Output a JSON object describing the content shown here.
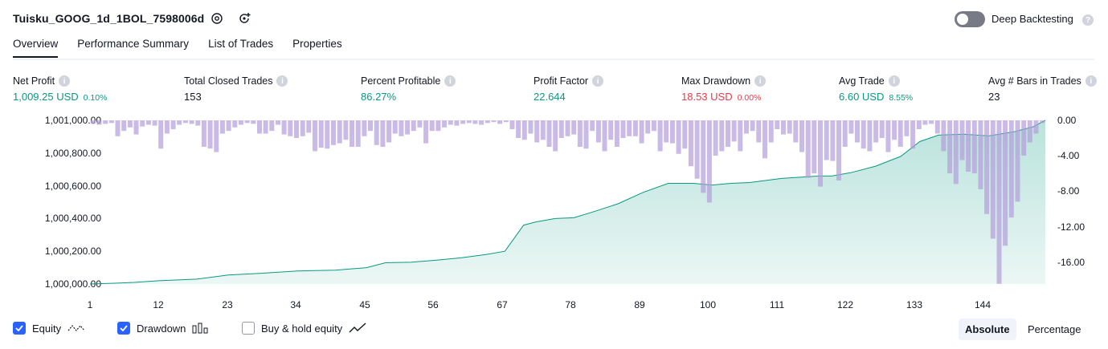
{
  "header": {
    "title": "Tuisku_GOOG_1d_1BOL_7598006d",
    "deep_backtesting_label": "Deep Backtesting",
    "deep_backtesting_on": false
  },
  "tabs": [
    {
      "label": "Overview",
      "active": true
    },
    {
      "label": "Performance Summary",
      "active": false
    },
    {
      "label": "List of Trades",
      "active": false
    },
    {
      "label": "Properties",
      "active": false
    }
  ],
  "metrics": [
    {
      "label": "Net Profit",
      "value": "1,009.25 USD",
      "sub": "0.10%",
      "color": "#089981"
    },
    {
      "label": "Total Closed Trades",
      "value": "153",
      "sub": "",
      "color": "#131722"
    },
    {
      "label": "Percent Profitable",
      "value": "86.27%",
      "sub": "",
      "color": "#089981"
    },
    {
      "label": "Profit Factor",
      "value": "22.644",
      "sub": "",
      "color": "#089981"
    },
    {
      "label": "Max Drawdown",
      "value": "18.53 USD",
      "sub": "0.00%",
      "color": "#f23645"
    },
    {
      "label": "Avg Trade",
      "value": "6.60 USD",
      "sub": "8.55%",
      "color": "#089981"
    },
    {
      "label": "Avg # Bars in Trades",
      "value": "23",
      "sub": "",
      "color": "#131722"
    }
  ],
  "legend": {
    "equity": {
      "label": "Equity",
      "checked": true
    },
    "drawdown": {
      "label": "Drawdown",
      "checked": true
    },
    "buyhold": {
      "label": "Buy & hold equity",
      "checked": false
    }
  },
  "scale_toggle": {
    "absolute": "Absolute",
    "percentage": "Percentage",
    "active": "Absolute"
  },
  "chart_data": {
    "type": "area",
    "equity_color": "#089981",
    "drawdown_color": "#b39ddb",
    "left_axis": {
      "ticks": [
        "1,001,000.00",
        "1,000,800.00",
        "1,000,600.00",
        "1,000,400.00",
        "1,000,200.00",
        "1,000,000.00"
      ],
      "ylim": [
        1000000,
        1001000
      ]
    },
    "right_axis": {
      "ticks": [
        "0.00",
        "-4.00",
        "-8.00",
        "-12.00",
        "-16.00"
      ],
      "ylim": [
        -18.53,
        0
      ]
    },
    "x_ticks": [
      "1",
      "12",
      "23",
      "34",
      "45",
      "56",
      "67",
      "78",
      "89",
      "100",
      "111",
      "122",
      "133",
      "144"
    ],
    "xlim": [
      1,
      153
    ],
    "equity": [
      [
        1,
        1000000
      ],
      [
        5,
        1000005
      ],
      [
        8,
        1000010
      ],
      [
        12,
        1000020
      ],
      [
        18,
        1000030
      ],
      [
        23,
        1000055
      ],
      [
        28,
        1000065
      ],
      [
        34,
        1000080
      ],
      [
        40,
        1000085
      ],
      [
        45,
        1000100
      ],
      [
        48,
        1000130
      ],
      [
        52,
        1000133
      ],
      [
        56,
        1000145
      ],
      [
        60,
        1000160
      ],
      [
        64,
        1000180
      ],
      [
        67,
        1000200
      ],
      [
        70,
        1000360
      ],
      [
        72,
        1000380
      ],
      [
        75,
        1000400
      ],
      [
        78,
        1000405
      ],
      [
        81,
        1000440
      ],
      [
        85,
        1000490
      ],
      [
        89,
        1000560
      ],
      [
        93,
        1000615
      ],
      [
        97,
        1000615
      ],
      [
        100,
        1000605
      ],
      [
        103,
        1000615
      ],
      [
        106,
        1000620
      ],
      [
        111,
        1000645
      ],
      [
        115,
        1000655
      ],
      [
        117,
        1000660
      ],
      [
        119,
        1000660
      ],
      [
        122,
        1000680
      ],
      [
        126,
        1000720
      ],
      [
        130,
        1000780
      ],
      [
        133,
        1000870
      ],
      [
        136,
        1000910
      ],
      [
        140,
        1000915
      ],
      [
        144,
        1000905
      ],
      [
        148,
        1000930
      ],
      [
        151,
        1000960
      ],
      [
        153,
        1001000
      ]
    ],
    "drawdown": [
      -0.4,
      -0.5,
      -0.4,
      -0.3,
      -1.8,
      -1.2,
      -0.8,
      -1.6,
      -0.7,
      -0.5,
      -0.6,
      -3.2,
      -1.5,
      -1.0,
      -0.5,
      -0.3,
      -0.4,
      -0.6,
      -3.0,
      -3.2,
      -3.6,
      -1.5,
      -1.2,
      -0.8,
      -0.5,
      -0.3,
      -0.4,
      -1.5,
      -1.5,
      -1.2,
      -0.5,
      -1.6,
      -1.8,
      -2.0,
      -1.8,
      -1.4,
      -3.5,
      -3.1,
      -3.2,
      -2.8,
      -2.6,
      -2.2,
      -3.0,
      -3.0,
      -1.8,
      -1.2,
      -2.8,
      -3.0,
      -2.5,
      -1.5,
      -1.8,
      -1.6,
      -1.2,
      -0.8,
      -2.6,
      -1.2,
      -1.2,
      -0.8,
      -0.5,
      -0.6,
      -0.4,
      -0.3,
      -0.4,
      -0.5,
      -0.3,
      -0.2,
      -0.4,
      -0.2,
      -1.0,
      -2.0,
      -2.2,
      -1.5,
      -2.5,
      -2.2,
      -3.0,
      -3.5,
      -2.0,
      -1.8,
      -1.6,
      -3.0,
      -3.2,
      -1.2,
      -2.5,
      -3.5,
      -2.2,
      -3.0,
      -2.0,
      -1.8,
      -1.8,
      -2.6,
      -1.5,
      -1.2,
      -3.5,
      -2.5,
      -2.6,
      -3.8,
      -3.2,
      -5.2,
      -6.6,
      -8.2,
      -9.3,
      -4.0,
      -3.5,
      -3.0,
      -2.4,
      -3.5,
      -1.5,
      -1.2,
      -2.5,
      -4.3,
      -2.5,
      -1.0,
      -1.6,
      -1.5,
      -2.5,
      -3.6,
      -6.5,
      -6.0,
      -7.5,
      -4.5,
      -4.6,
      -6.8,
      -3.0,
      -1.5,
      -2.5,
      -3.2,
      -3.5,
      -2.5,
      -2.0,
      -3.6,
      -2.2,
      -3.0,
      -1.8,
      -3.2,
      -1.0,
      -0.5,
      -0.4,
      -1.5,
      -3.5,
      -6.0,
      -7.2,
      -4.5,
      -5.8,
      -6.0,
      -7.8,
      -10.6,
      -13.4,
      -18.5,
      -14.2,
      -11.0,
      -9.2,
      -4.0,
      -2.5,
      -1.5,
      -0.3
    ]
  }
}
